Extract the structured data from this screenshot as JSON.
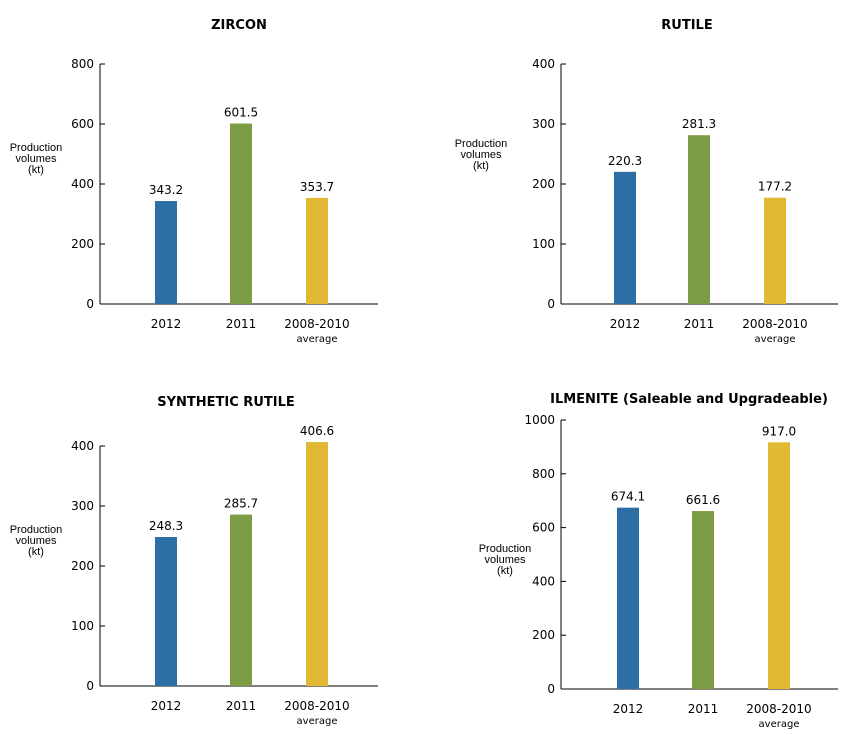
{
  "colors": [
    "#2e6ea6",
    "#7d9c46",
    "#e1b934"
  ],
  "chart_data": [
    {
      "type": "bar",
      "title": "ZIRCON",
      "ylabel": [
        "Production",
        "volumes",
        "(kt)"
      ],
      "categories": [
        [
          "2012"
        ],
        [
          "2011"
        ],
        [
          "2008-2010",
          "average"
        ]
      ],
      "values": [
        343.2,
        601.5,
        353.7
      ],
      "value_labels": [
        "343.2",
        "601.5",
        "353.7"
      ],
      "ylim": [
        0,
        800
      ],
      "yticks": [
        0,
        200,
        400,
        600,
        800
      ]
    },
    {
      "type": "bar",
      "title": "RUTILE",
      "ylabel": [
        "Production",
        "volumes",
        "(kt)"
      ],
      "categories": [
        [
          "2012"
        ],
        [
          "2011"
        ],
        [
          "2008-2010",
          "average"
        ]
      ],
      "values": [
        220.3,
        281.3,
        177.2
      ],
      "value_labels": [
        "220.3",
        "281.3",
        "177.2"
      ],
      "ylim": [
        0,
        400
      ],
      "yticks": [
        0,
        100,
        200,
        300,
        400
      ]
    },
    {
      "type": "bar",
      "title": "SYNTHETIC RUTILE",
      "ylabel": [
        "Production",
        "volumes",
        "(kt)"
      ],
      "categories": [
        [
          "2012"
        ],
        [
          "2011"
        ],
        [
          "2008-2010",
          "average"
        ]
      ],
      "values": [
        248.3,
        285.7,
        406.6
      ],
      "value_labels": [
        "248.3",
        "285.7",
        "406.6"
      ],
      "ylim": [
        0,
        400
      ],
      "yticks": [
        0,
        100,
        200,
        300,
        400
      ]
    },
    {
      "type": "bar",
      "title": "ILMENITE (Saleable and Upgradeable)",
      "ylabel": [
        "Production",
        "volumes",
        "(kt)"
      ],
      "categories": [
        [
          "2012"
        ],
        [
          "2011"
        ],
        [
          "2008-2010",
          "average"
        ]
      ],
      "values": [
        674.1,
        661.6,
        917.0
      ],
      "value_labels": [
        "674.1",
        "661.6",
        "917.0"
      ],
      "ylim": [
        0,
        1000
      ],
      "yticks": [
        0,
        200,
        400,
        600,
        800,
        1000
      ]
    }
  ]
}
